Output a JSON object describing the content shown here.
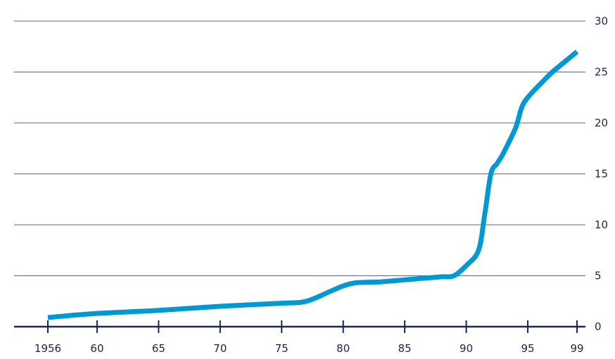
{
  "chart_data": {
    "type": "line",
    "title": "",
    "xlabel": "",
    "ylabel": "",
    "xlim": [
      1956,
      1999
    ],
    "ylim": [
      0,
      30
    ],
    "x_tick_labels": [
      {
        "x": 1956,
        "label": "1956"
      },
      {
        "x": 1960,
        "label": "60"
      },
      {
        "x": 1965,
        "label": "65"
      },
      {
        "x": 1970,
        "label": "70"
      },
      {
        "x": 1975,
        "label": "75"
      },
      {
        "x": 1980,
        "label": "80"
      },
      {
        "x": 1985,
        "label": "85"
      },
      {
        "x": 1990,
        "label": "90"
      },
      {
        "x": 1995,
        "label": "95"
      },
      {
        "x": 1999,
        "label": "99"
      }
    ],
    "y_ticks": [
      0,
      5,
      10,
      15,
      20,
      25,
      30
    ],
    "y_tick_labels": [
      "0",
      "5",
      "10",
      "15",
      "20",
      "25",
      "30"
    ],
    "grid": "horizontal",
    "y_axis_side": "right",
    "series": [
      {
        "color": "#0099d6",
        "x": [
          1956,
          1960,
          1965,
          1970,
          1975,
          1977,
          1979,
          1980,
          1981,
          1983,
          1985,
          1987,
          1988,
          1989,
          1990,
          1991,
          1991.5,
          1992,
          1992.5,
          1993,
          1994,
          1994.5,
          1995,
          1996,
          1997,
          1998,
          1999
        ],
        "y": [
          0.9,
          1.3,
          1.6,
          2.0,
          2.3,
          2.5,
          3.5,
          4.0,
          4.3,
          4.4,
          4.6,
          4.8,
          4.9,
          5.0,
          6.0,
          7.5,
          11.0,
          15.0,
          16.0,
          17.0,
          19.5,
          21.5,
          22.5,
          23.8,
          25.0,
          26.0,
          27.0
        ]
      }
    ]
  }
}
